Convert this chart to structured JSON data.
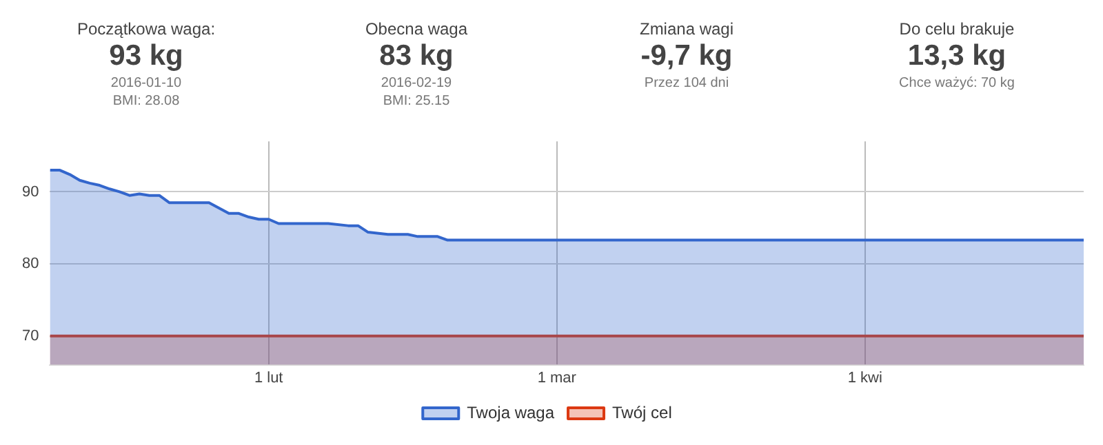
{
  "chart_data": [
    {
      "type": "other",
      "title": "Początkowa waga:",
      "annotations": [
        "93 kg",
        "2016-01-10",
        "BMI: 28.08"
      ]
    },
    {
      "type": "other",
      "title": "Obecna waga",
      "annotations": [
        "83 kg",
        "2016-02-19",
        "BMI: 25.15"
      ]
    },
    {
      "type": "other",
      "title": "Zmiana wagi",
      "annotations": [
        "-9,7 kg",
        "Przez 104 dni"
      ]
    },
    {
      "type": "other",
      "title": "Do celu brakuje",
      "annotations": [
        "13,3 kg",
        "Chce ważyć: 70 kg"
      ]
    },
    {
      "type": "area",
      "xlim": [
        "2016-01-10",
        "2016-04-23"
      ],
      "xticks": [
        {
          "value": "2016-02-01",
          "label": "1 lut"
        },
        {
          "value": "2016-03-01",
          "label": "1 mar"
        },
        {
          "value": "2016-04-01",
          "label": "1 kwi"
        }
      ],
      "ylim": [
        66,
        97
      ],
      "yticks": [
        70,
        80,
        90
      ],
      "grid": true,
      "legend": "bottom",
      "series": [
        {
          "name": "Twoja waga",
          "color": "#3366cc",
          "x": [
            "2016-01-10",
            "2016-01-11",
            "2016-01-12",
            "2016-01-13",
            "2016-01-14",
            "2016-01-15",
            "2016-01-16",
            "2016-01-17",
            "2016-01-18",
            "2016-01-19",
            "2016-01-20",
            "2016-01-21",
            "2016-01-22",
            "2016-01-26",
            "2016-01-28",
            "2016-01-29",
            "2016-01-30",
            "2016-01-31",
            "2016-02-01",
            "2016-02-02",
            "2016-02-07",
            "2016-02-09",
            "2016-02-10",
            "2016-02-11",
            "2016-02-13",
            "2016-02-15",
            "2016-02-16",
            "2016-02-18",
            "2016-02-19",
            "2016-04-23"
          ],
          "values": [
            93.0,
            93.0,
            92.4,
            91.6,
            91.2,
            90.9,
            90.4,
            90.0,
            89.5,
            89.7,
            89.5,
            89.5,
            88.5,
            88.5,
            87.0,
            87.0,
            86.5,
            86.2,
            86.2,
            85.6,
            85.6,
            85.3,
            85.3,
            84.4,
            84.1,
            84.1,
            83.8,
            83.8,
            83.3,
            83.3
          ]
        },
        {
          "name": "Twój cel",
          "color": "#dc3912",
          "x": [
            "2016-01-10",
            "2016-04-23"
          ],
          "values": [
            70,
            70
          ]
        }
      ]
    }
  ]
}
